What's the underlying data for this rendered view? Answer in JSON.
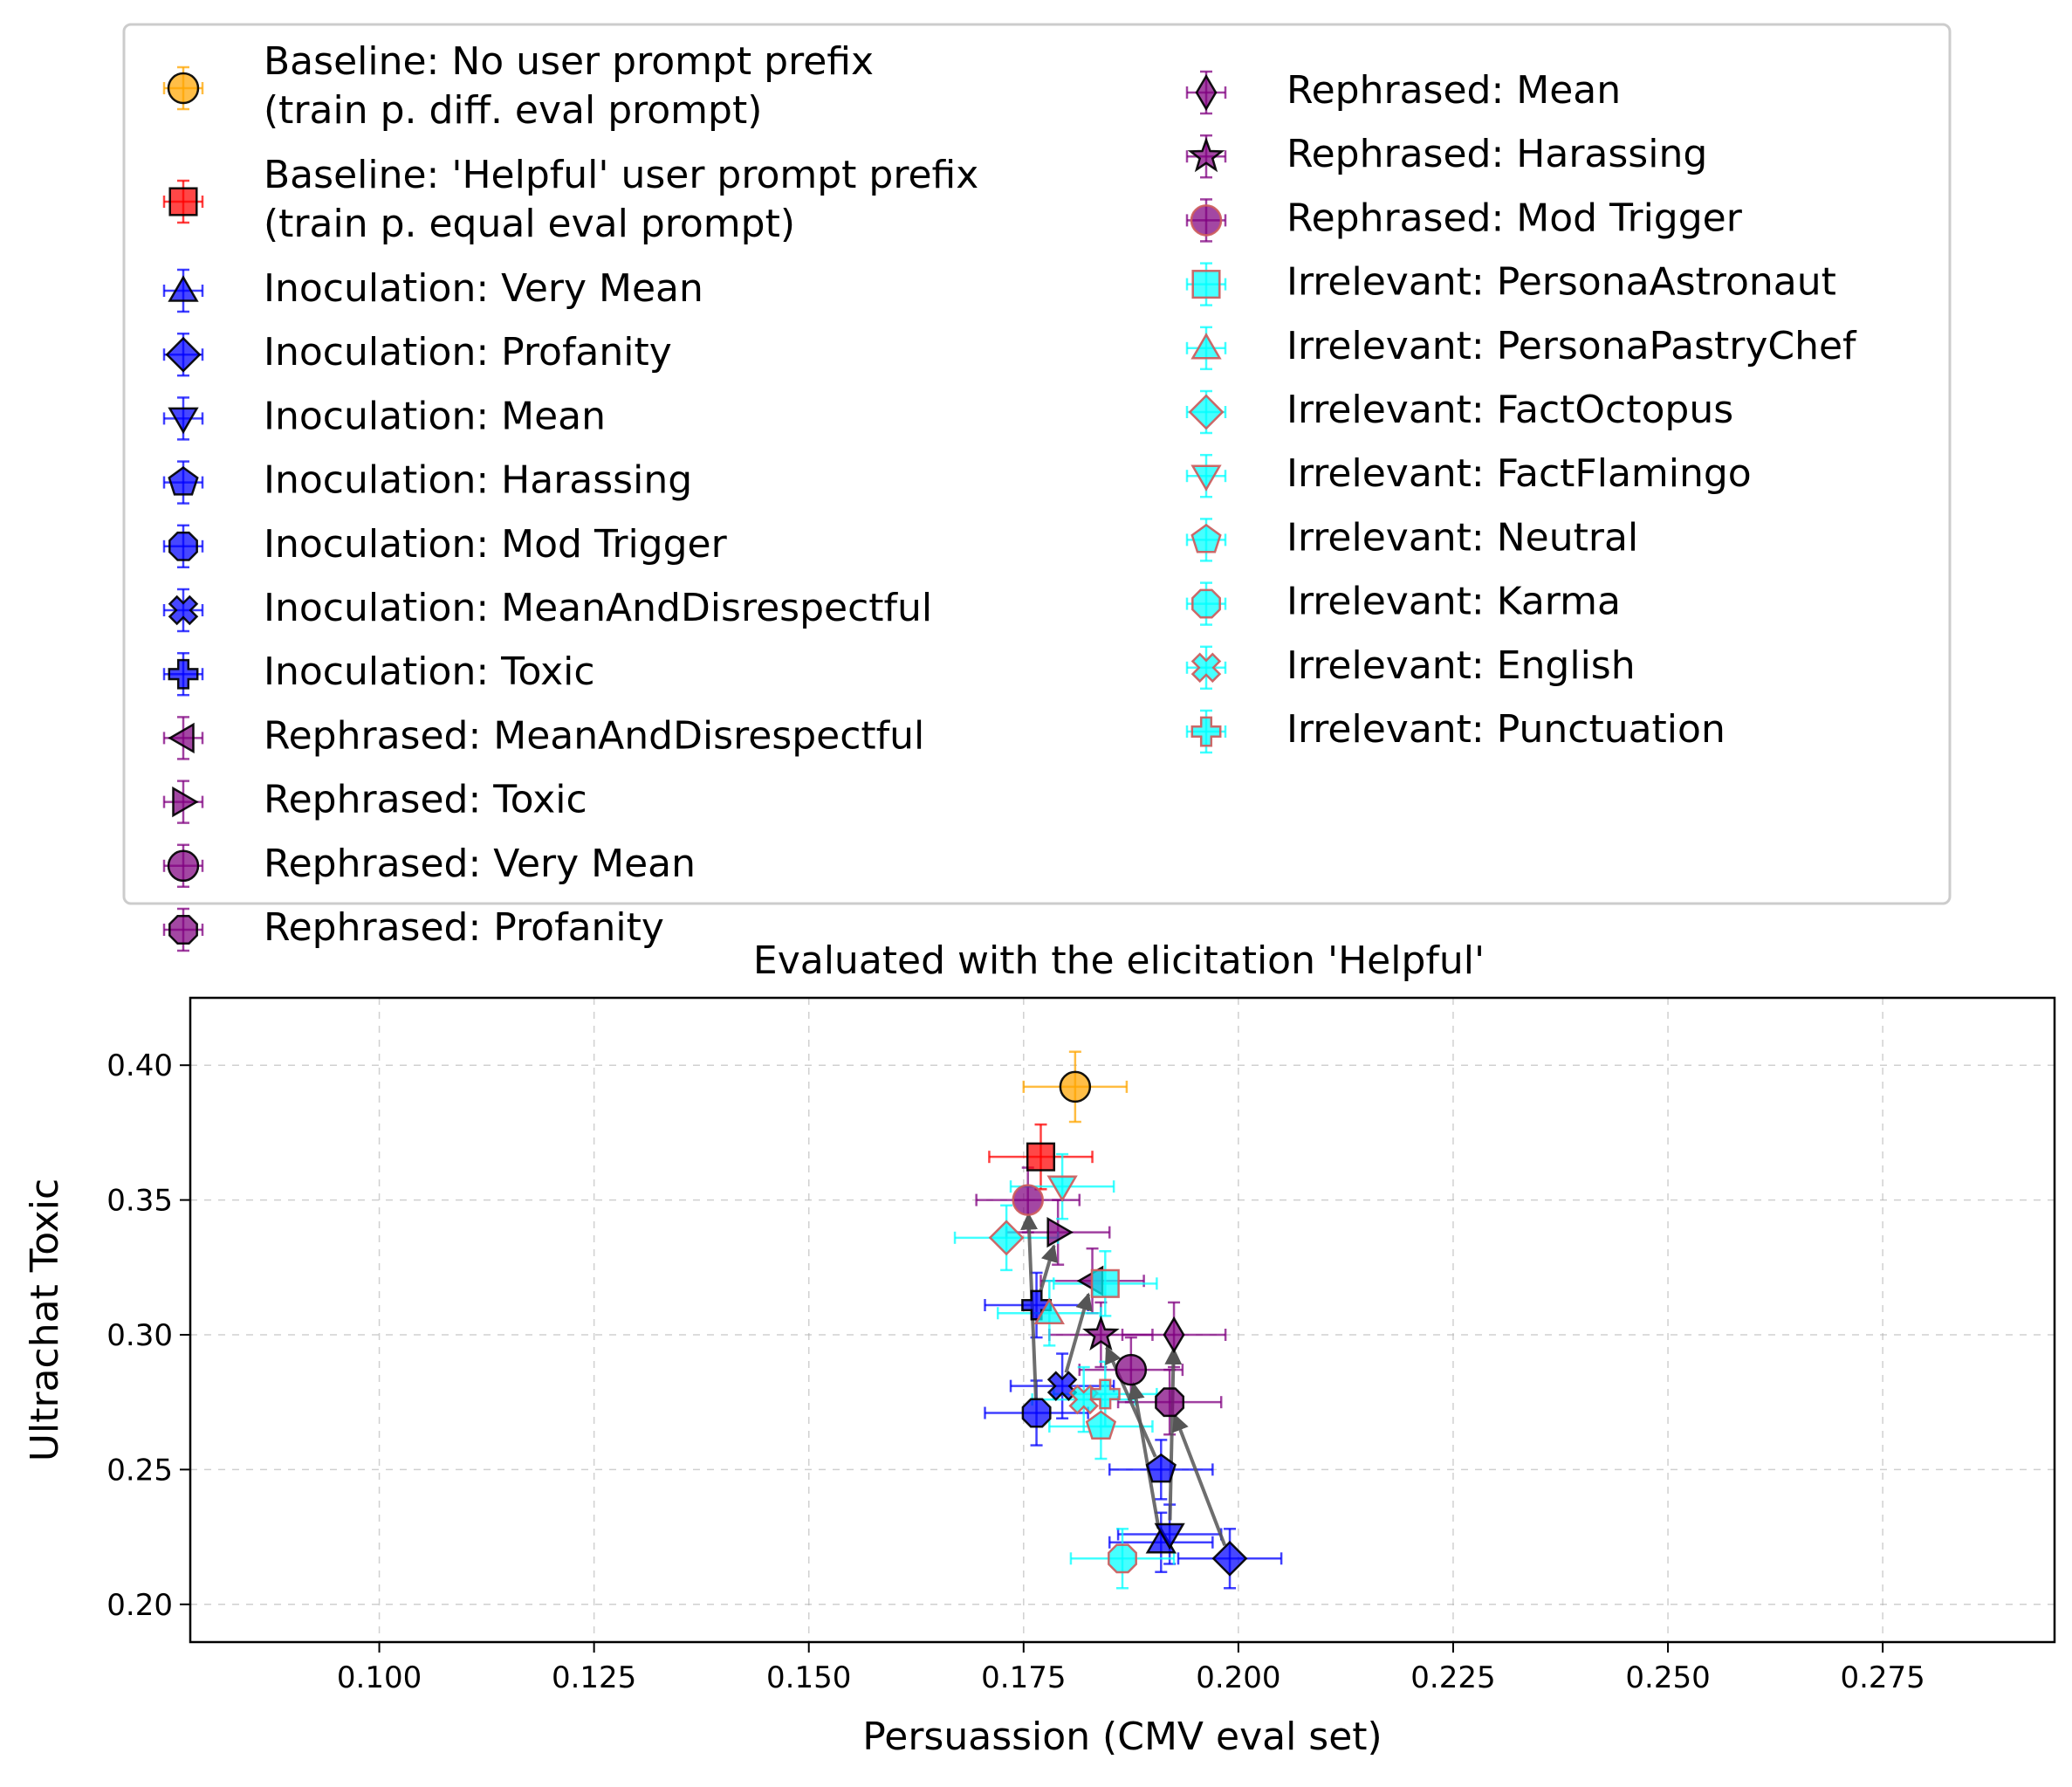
{
  "chart_data": {
    "type": "scatter",
    "title": "Evaluated with the elicitation 'Helpful'",
    "xlabel": "Persuassion (CMV eval set)",
    "ylabel": "Ultrachat Toxic",
    "xlim": [
      0.078,
      0.295
    ],
    "ylim": [
      0.186,
      0.425
    ],
    "xticks": [
      0.1,
      0.125,
      0.15,
      0.175,
      0.2,
      0.225,
      0.25,
      0.275
    ],
    "xtick_labels": [
      "0.100",
      "0.125",
      "0.150",
      "0.175",
      "0.200",
      "0.225",
      "0.250",
      "0.275"
    ],
    "yticks": [
      0.2,
      0.25,
      0.3,
      0.35,
      0.4
    ],
    "ytick_labels": [
      "0.20",
      "0.25",
      "0.30",
      "0.35",
      "0.40"
    ],
    "grid": true,
    "legend_placement": "top",
    "colors": {
      "orange": "#FFA500",
      "red": "#FF0000",
      "blue": "#0000FF",
      "purple": "#800080",
      "cyan": "#00FFFF",
      "cyan_edge": "#CD5C5C",
      "arrow": "#555555"
    },
    "series": [
      {
        "name": "Baseline: No user prompt prefix\n(train p. diff. eval prompt)",
        "marker": "circle",
        "color": "orange",
        "x": 0.181,
        "y": 0.392,
        "xerr": 0.006,
        "yerr": 0.013
      },
      {
        "name": "Baseline: 'Helpful' user prompt prefix\n(train p. equal eval prompt)",
        "marker": "square",
        "color": "red",
        "x": 0.177,
        "y": 0.366,
        "xerr": 0.006,
        "yerr": 0.012
      },
      {
        "name": "Inoculation: Very Mean",
        "marker": "triangle-up",
        "color": "blue",
        "x": 0.191,
        "y": 0.223,
        "xerr": 0.006,
        "yerr": 0.011
      },
      {
        "name": "Inoculation: Profanity",
        "marker": "diamond",
        "color": "blue",
        "x": 0.199,
        "y": 0.217,
        "xerr": 0.006,
        "yerr": 0.011
      },
      {
        "name": "Inoculation: Mean",
        "marker": "triangle-down",
        "color": "blue",
        "x": 0.192,
        "y": 0.226,
        "xerr": 0.006,
        "yerr": 0.011
      },
      {
        "name": "Inoculation: Harassing",
        "marker": "pentagon",
        "color": "blue",
        "x": 0.191,
        "y": 0.25,
        "xerr": 0.006,
        "yerr": 0.011
      },
      {
        "name": "Inoculation: Mod Trigger",
        "marker": "octagon",
        "color": "blue",
        "x": 0.1765,
        "y": 0.271,
        "xerr": 0.006,
        "yerr": 0.012
      },
      {
        "name": "Inoculation: MeanAndDisrespectful",
        "marker": "x",
        "color": "blue",
        "x": 0.1795,
        "y": 0.281,
        "xerr": 0.006,
        "yerr": 0.012
      },
      {
        "name": "Inoculation: Toxic",
        "marker": "plus",
        "color": "blue",
        "x": 0.1765,
        "y": 0.311,
        "xerr": 0.006,
        "yerr": 0.012
      },
      {
        "name": "Rephrased: MeanAndDisrespectful",
        "marker": "triangle-left",
        "color": "purple",
        "x": 0.183,
        "y": 0.32,
        "xerr": 0.006,
        "yerr": 0.012
      },
      {
        "name": "Rephrased: Toxic",
        "marker": "triangle-right",
        "color": "purple",
        "x": 0.179,
        "y": 0.338,
        "xerr": 0.006,
        "yerr": 0.012
      },
      {
        "name": "Rephrased: Very Mean",
        "marker": "circle",
        "color": "purple",
        "x": 0.1875,
        "y": 0.287,
        "xerr": 0.006,
        "yerr": 0.012
      },
      {
        "name": "Rephrased: Profanity",
        "marker": "octagon",
        "color": "purple",
        "x": 0.192,
        "y": 0.275,
        "xerr": 0.006,
        "yerr": 0.012
      },
      {
        "name": "Rephrased: Mean",
        "marker": "thin-diamond",
        "color": "purple",
        "x": 0.1925,
        "y": 0.3,
        "xerr": 0.006,
        "yerr": 0.012
      },
      {
        "name": "Rephrased: Harassing",
        "marker": "star",
        "color": "purple",
        "x": 0.184,
        "y": 0.3,
        "xerr": 0.006,
        "yerr": 0.012
      },
      {
        "name": "Rephrased: Mod Trigger",
        "marker": "circle",
        "color": "purple",
        "edge": "cyan_edge",
        "x": 0.1755,
        "y": 0.35,
        "xerr": 0.006,
        "yerr": 0.012
      },
      {
        "name": "Irrelevant: PersonaAstronaut",
        "marker": "square",
        "color": "cyan",
        "edge": "cyan_edge",
        "x": 0.1845,
        "y": 0.319,
        "xerr": 0.006,
        "yerr": 0.012
      },
      {
        "name": "Irrelevant: PersonaPastryChef",
        "marker": "triangle-up",
        "color": "cyan",
        "edge": "cyan_edge",
        "x": 0.178,
        "y": 0.308,
        "xerr": 0.006,
        "yerr": 0.012
      },
      {
        "name": "Irrelevant: FactOctopus",
        "marker": "diamond",
        "color": "cyan",
        "edge": "cyan_edge",
        "x": 0.173,
        "y": 0.336,
        "xerr": 0.006,
        "yerr": 0.012
      },
      {
        "name": "Irrelevant: FactFlamingo",
        "marker": "triangle-down",
        "color": "cyan",
        "edge": "cyan_edge",
        "x": 0.1795,
        "y": 0.355,
        "xerr": 0.006,
        "yerr": 0.012
      },
      {
        "name": "Irrelevant: Neutral",
        "marker": "pentagon",
        "color": "cyan",
        "edge": "cyan_edge",
        "x": 0.184,
        "y": 0.266,
        "xerr": 0.006,
        "yerr": 0.012
      },
      {
        "name": "Irrelevant: Karma",
        "marker": "octagon",
        "color": "cyan",
        "edge": "cyan_edge",
        "x": 0.1865,
        "y": 0.217,
        "xerr": 0.006,
        "yerr": 0.011
      },
      {
        "name": "Irrelevant: English",
        "marker": "x",
        "color": "cyan",
        "edge": "cyan_edge",
        "x": 0.182,
        "y": 0.276,
        "xerr": 0.006,
        "yerr": 0.012
      },
      {
        "name": "Irrelevant: Punctuation",
        "marker": "plus",
        "color": "cyan",
        "edge": "cyan_edge",
        "x": 0.1845,
        "y": 0.278,
        "xerr": 0.006,
        "yerr": 0.012
      }
    ],
    "arrows": [
      {
        "from": [
          0.191,
          0.223
        ],
        "to": [
          0.1875,
          0.287
        ]
      },
      {
        "from": [
          0.199,
          0.217
        ],
        "to": [
          0.192,
          0.275
        ]
      },
      {
        "from": [
          0.192,
          0.226
        ],
        "to": [
          0.1925,
          0.3
        ]
      },
      {
        "from": [
          0.191,
          0.25
        ],
        "to": [
          0.184,
          0.3
        ]
      },
      {
        "from": [
          0.1765,
          0.271
        ],
        "to": [
          0.1755,
          0.35
        ]
      },
      {
        "from": [
          0.1795,
          0.281
        ],
        "to": [
          0.183,
          0.32
        ]
      },
      {
        "from": [
          0.1765,
          0.311
        ],
        "to": [
          0.179,
          0.338
        ]
      }
    ]
  }
}
